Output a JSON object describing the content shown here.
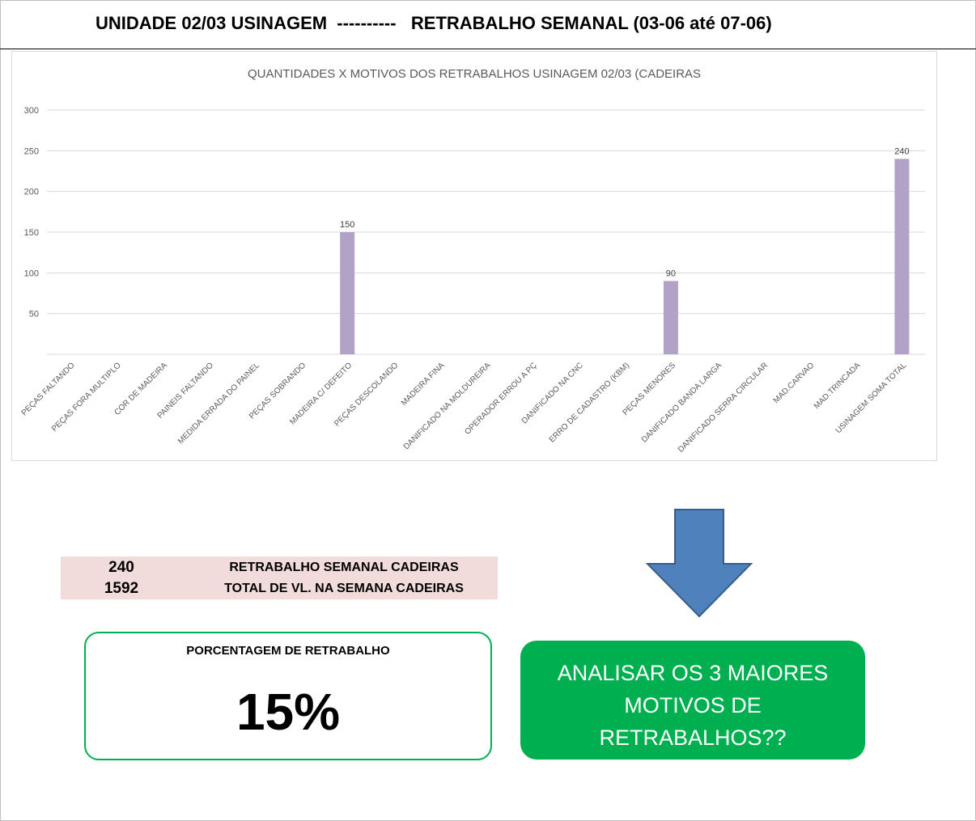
{
  "header": {
    "title": "UNIDADE 02/03 USINAGEM  ----------   RETRABALHO SEMANAL (03-06 até 07-06)"
  },
  "chart_data": {
    "type": "bar",
    "title": "QUANTIDADES X MOTIVOS DOS RETRABALHOS USINAGEM 02/03 (CADEIRAS",
    "xlabel": "",
    "ylabel": "",
    "ylim": [
      0,
      300
    ],
    "yticks": [
      50,
      100,
      150,
      200,
      250,
      300
    ],
    "grid": true,
    "bar_color": "#b3a2c7",
    "categories": [
      "PEÇAS FALTANDO",
      "PEÇAS FORA MULTIPLO",
      "COR DE MADEIRA",
      "PAINEIS FALTANDO",
      "MEDIDA ERRADA DO PAINEL",
      "PEÇAS SOBRANDO",
      "MADEIRA C/ DEFEITO",
      "PEÇAS DESCOLANDO",
      "MADEIRA FINA",
      "DANIFICADO NA MOLDUREIRA",
      "OPERADOR ERROU A PÇ",
      "DANIFICADO NA CNC",
      "ERRO DE CADASTRO (KBM)",
      "PEÇAS MENORES",
      "DANIFICADO BANDA LARGA",
      "DANIFICADO SERRA CIRCULAR",
      "MAD.CARVAO",
      "MAD.TRINCADA",
      "USINAGEM SOMA TOTAL"
    ],
    "values": [
      0,
      0,
      0,
      0,
      0,
      0,
      150,
      0,
      0,
      0,
      0,
      0,
      0,
      90,
      0,
      0,
      0,
      0,
      240
    ],
    "data_labels": [
      "",
      "",
      "",
      "",
      "",
      "",
      "150",
      "",
      "",
      "",
      "",
      "",
      "",
      "90",
      "",
      "",
      "",
      "",
      "240"
    ]
  },
  "summary": {
    "rows": [
      {
        "value": "240",
        "label": "RETRABALHO SEMANAL CADEIRAS"
      },
      {
        "value": "1592",
        "label": "TOTAL DE VL. NA SEMANA CADEIRAS"
      }
    ]
  },
  "percentage": {
    "title": "PORCENTAGEM DE RETRABALHO",
    "value": "15%"
  },
  "action": {
    "text": "ANALISAR OS 3 MAIORES MOTIVOS DE RETRABALHOS??"
  },
  "colors": {
    "accent_green": "#00b050",
    "arrow_blue": "#4f81bd",
    "summary_bg": "#f2dcdb"
  },
  "icons": {
    "arrow": "down-arrow-icon"
  }
}
